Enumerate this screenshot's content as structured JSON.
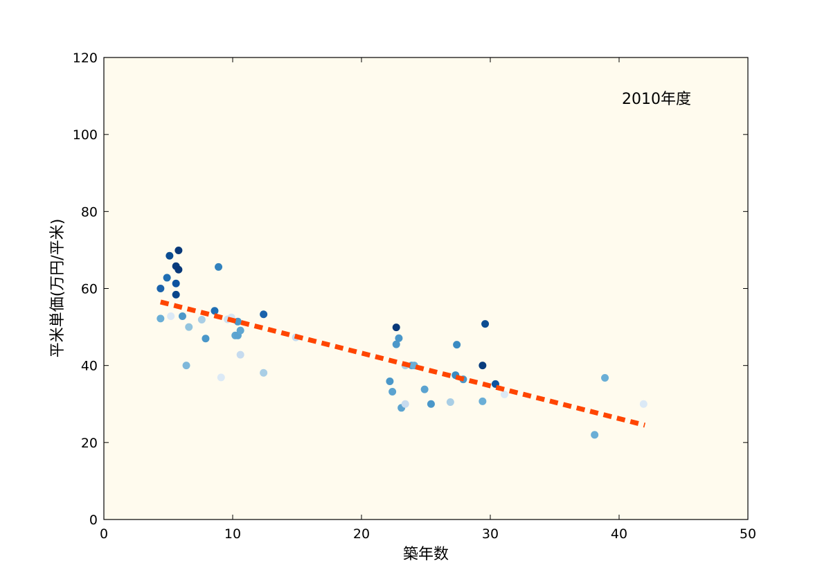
{
  "chart_data": {
    "type": "scatter",
    "annotation": "2010年度",
    "xlabel": "築年数",
    "ylabel": "平米単価(万円/平米)",
    "xlim": [
      0,
      50
    ],
    "ylim": [
      0,
      120
    ],
    "xticks": [
      0,
      10,
      20,
      30,
      40,
      50
    ],
    "yticks": [
      0,
      20,
      40,
      60,
      80,
      100,
      120
    ],
    "grid": false,
    "background_color": "#fffbee",
    "trend_color": "#ff4500",
    "points": [
      {
        "x": 4.4,
        "y": 60.0,
        "color": "#1a62ab"
      },
      {
        "x": 4.4,
        "y": 52.2,
        "color": "#6aaed6"
      },
      {
        "x": 4.9,
        "y": 62.8,
        "color": "#1f6eb3"
      },
      {
        "x": 5.1,
        "y": 68.5,
        "color": "#0b4d92"
      },
      {
        "x": 5.2,
        "y": 52.8,
        "color": "#dbe9f6"
      },
      {
        "x": 5.6,
        "y": 65.8,
        "color": "#083c7d"
      },
      {
        "x": 5.6,
        "y": 61.3,
        "color": "#0d53a0"
      },
      {
        "x": 5.6,
        "y": 58.4,
        "color": "#08468b"
      },
      {
        "x": 5.8,
        "y": 64.9,
        "color": "#083879"
      },
      {
        "x": 5.8,
        "y": 69.9,
        "color": "#083879"
      },
      {
        "x": 6.1,
        "y": 52.8,
        "color": "#4c98c9"
      },
      {
        "x": 6.4,
        "y": 40.0,
        "color": "#7fb8da"
      },
      {
        "x": 6.6,
        "y": 50.0,
        "color": "#92c4de"
      },
      {
        "x": 7.6,
        "y": 51.9,
        "color": "#a9cee5"
      },
      {
        "x": 7.9,
        "y": 47.0,
        "color": "#4a97c9"
      },
      {
        "x": 8.6,
        "y": 54.2,
        "color": "#1f6eb3"
      },
      {
        "x": 8.9,
        "y": 65.6,
        "color": "#3282be"
      },
      {
        "x": 9.1,
        "y": 36.9,
        "color": "#dbe9f6"
      },
      {
        "x": 9.6,
        "y": 52.0,
        "color": "#cde0f1"
      },
      {
        "x": 9.9,
        "y": 52.5,
        "color": "#d6e6f4"
      },
      {
        "x": 10.2,
        "y": 47.8,
        "color": "#5fa6d1"
      },
      {
        "x": 10.4,
        "y": 51.4,
        "color": "#4a97c9"
      },
      {
        "x": 10.4,
        "y": 47.8,
        "color": "#5ba3d0"
      },
      {
        "x": 10.6,
        "y": 42.8,
        "color": "#c6dbef"
      },
      {
        "x": 10.6,
        "y": 49.1,
        "color": "#5fa6d1"
      },
      {
        "x": 12.4,
        "y": 53.3,
        "color": "#1a62ab"
      },
      {
        "x": 12.4,
        "y": 38.1,
        "color": "#a9cee5"
      },
      {
        "x": 14.9,
        "y": 47.3,
        "color": "#c6dbef"
      },
      {
        "x": 22.2,
        "y": 35.9,
        "color": "#4a97c9"
      },
      {
        "x": 22.4,
        "y": 33.2,
        "color": "#5ba3d0"
      },
      {
        "x": 22.7,
        "y": 45.5,
        "color": "#4c98c9"
      },
      {
        "x": 22.7,
        "y": 49.9,
        "color": "#083879"
      },
      {
        "x": 22.9,
        "y": 47.1,
        "color": "#4a97c9"
      },
      {
        "x": 23.1,
        "y": 29.0,
        "color": "#5ba3d0"
      },
      {
        "x": 23.4,
        "y": 40.0,
        "color": "#a9cee5"
      },
      {
        "x": 23.4,
        "y": 30.0,
        "color": "#c6dbef"
      },
      {
        "x": 23.9,
        "y": 40.0,
        "color": "#5ba3d0"
      },
      {
        "x": 24.1,
        "y": 40.0,
        "color": "#6aaed6"
      },
      {
        "x": 24.9,
        "y": 33.8,
        "color": "#5ba3d0"
      },
      {
        "x": 25.4,
        "y": 30.0,
        "color": "#4a97c9"
      },
      {
        "x": 26.9,
        "y": 30.5,
        "color": "#a9cee5"
      },
      {
        "x": 27.3,
        "y": 37.5,
        "color": "#3a8bc2"
      },
      {
        "x": 27.4,
        "y": 45.4,
        "color": "#3a8bc2"
      },
      {
        "x": 27.9,
        "y": 36.4,
        "color": "#4a97c9"
      },
      {
        "x": 29.4,
        "y": 40.0,
        "color": "#083c7d"
      },
      {
        "x": 29.4,
        "y": 30.7,
        "color": "#6aaed6"
      },
      {
        "x": 29.6,
        "y": 50.8,
        "color": "#0b4d92"
      },
      {
        "x": 30.4,
        "y": 35.2,
        "color": "#0d53a0"
      },
      {
        "x": 31.1,
        "y": 32.5,
        "color": "#dbe9f6"
      },
      {
        "x": 38.1,
        "y": 22.0,
        "color": "#6aaed6"
      },
      {
        "x": 38.9,
        "y": 36.8,
        "color": "#6aaed6"
      },
      {
        "x": 41.9,
        "y": 30.0,
        "color": "#dbe9f6"
      }
    ],
    "trendline": {
      "x": [
        4.4,
        42.0
      ],
      "y": [
        56.5,
        24.5
      ]
    }
  }
}
